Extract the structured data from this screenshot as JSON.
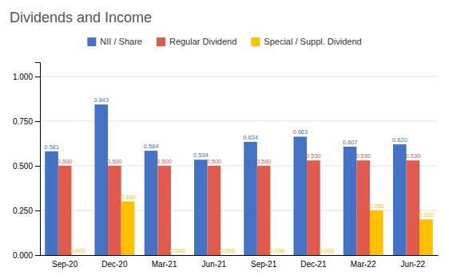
{
  "chart_data": {
    "type": "bar",
    "title": "Dividends and Income",
    "categories": [
      "Sep-20",
      "Dec-20",
      "Mar-21",
      "Jun-21",
      "Sep-21",
      "Dec-21",
      "Mar-22",
      "Jun-22"
    ],
    "series": [
      {
        "name": "NII / Share",
        "color": "#4472C4",
        "values": [
          0.581,
          0.843,
          0.584,
          0.534,
          0.634,
          0.663,
          0.607,
          0.62
        ],
        "value_labels": [
          "0.581",
          "0.843",
          "0.584",
          "0.534",
          "0.634",
          "0.663",
          "0.607",
          "0.620"
        ]
      },
      {
        "name": "Regular Dividend",
        "color": "#E05A4E",
        "values": [
          0.5,
          0.5,
          0.5,
          0.5,
          0.5,
          0.53,
          0.53,
          0.53
        ],
        "value_labels": [
          "0.500",
          "0.500",
          "0.500",
          "0.500",
          "0.500",
          "0.530",
          "0.530",
          "0.530"
        ]
      },
      {
        "name": "Special / Suppl. Dividend",
        "color": "#FFC000",
        "values": [
          0.0,
          0.3,
          0.0,
          0.0,
          0.0,
          0.0,
          0.25,
          0.2
        ],
        "value_labels": [
          "0.000",
          "0.300",
          "0.000",
          "0.000",
          "0.000",
          "0.000",
          "0.250",
          "0.200"
        ]
      }
    ],
    "ylim": [
      0,
      1.08
    ],
    "yticks": [
      {
        "value": 0.0,
        "label": "0.000"
      },
      {
        "value": 0.25,
        "label": "0.250"
      },
      {
        "value": 0.5,
        "label": "0.500"
      },
      {
        "value": 0.75,
        "label": "0.750"
      },
      {
        "value": 1.0,
        "label": "1.000"
      }
    ],
    "grid": true,
    "legend": "top",
    "data_labels": true
  }
}
